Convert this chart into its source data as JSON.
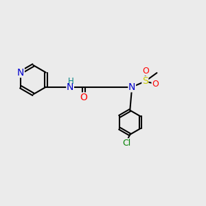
{
  "bg_color": "#ebebeb",
  "bond_color": "#000000",
  "bond_width": 1.5,
  "atom_colors": {
    "N": "#0000cd",
    "O": "#ff0000",
    "Cl": "#008000",
    "S": "#cccc00",
    "C": "#000000",
    "H": "#008080"
  }
}
